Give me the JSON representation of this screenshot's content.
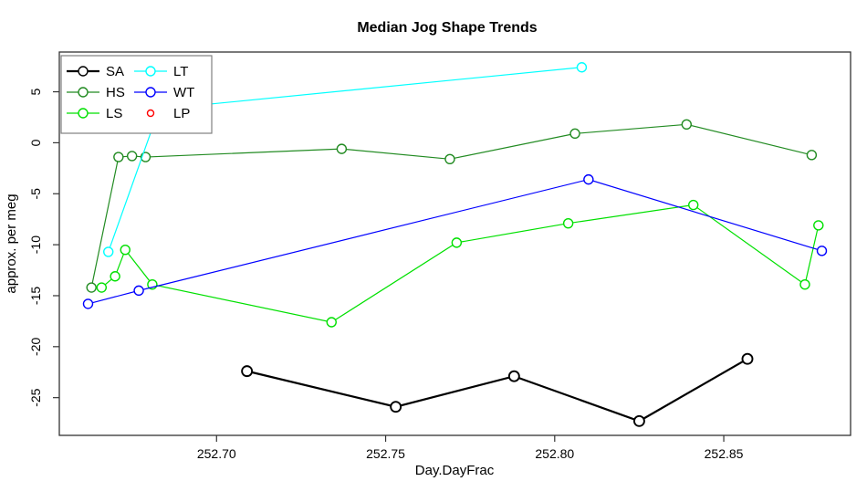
{
  "chart_data": {
    "type": "line",
    "title": "Median Jog Shape Trends",
    "xlabel": "Day.DayFrac",
    "ylabel": "approx. per meg",
    "xlim": [
      252.6535,
      252.8875
    ],
    "ylim": [
      -28.7,
      8.9
    ],
    "grid": false,
    "legend_position": "top-left",
    "x_ticks": {
      "values": [
        252.7,
        252.75,
        252.8,
        252.85
      ],
      "labels": [
        "252.70",
        "252.75",
        "252.80",
        "252.85"
      ]
    },
    "y_ticks": {
      "values": [
        5,
        0,
        -5,
        -10,
        -15,
        -20,
        -25
      ],
      "labels": [
        "5",
        "0",
        "-5",
        "-10",
        "-15",
        "-20",
        "-25"
      ]
    },
    "series": [
      {
        "name": "SA",
        "color": "#000000",
        "line": true,
        "line_width": 2.2,
        "marker": "open-circle",
        "points": [
          [
            252.709,
            -22.4
          ],
          [
            252.753,
            -25.9
          ],
          [
            252.788,
            -22.9
          ],
          [
            252.825,
            -27.3
          ],
          [
            252.857,
            -21.2
          ]
        ]
      },
      {
        "name": "HS",
        "color": "#228B22",
        "line": true,
        "line_width": 1.2,
        "marker": "open-circle",
        "points": [
          [
            252.663,
            -14.2
          ],
          [
            252.671,
            -1.4
          ],
          [
            252.675,
            -1.3
          ],
          [
            252.679,
            -1.4
          ],
          [
            252.737,
            -0.6
          ],
          [
            252.769,
            -1.6
          ],
          [
            252.806,
            0.9
          ],
          [
            252.839,
            1.8
          ],
          [
            252.876,
            -1.2
          ]
        ]
      },
      {
        "name": "LS",
        "color": "#00E000",
        "line": true,
        "line_width": 1.2,
        "marker": "open-circle",
        "points": [
          [
            252.666,
            -14.2
          ],
          [
            252.67,
            -13.1
          ],
          [
            252.673,
            -10.5
          ],
          [
            252.681,
            -13.9
          ],
          [
            252.734,
            -17.6
          ],
          [
            252.771,
            -9.8
          ],
          [
            252.804,
            -7.9
          ],
          [
            252.841,
            -6.1
          ],
          [
            252.874,
            -13.9
          ],
          [
            252.878,
            -8.1
          ]
        ]
      },
      {
        "name": "LT",
        "color": "#00FFFF",
        "line": true,
        "line_width": 1.2,
        "marker": "open-circle",
        "points": [
          [
            252.668,
            -10.7
          ],
          [
            252.683,
            3.3
          ],
          [
            252.808,
            7.4
          ]
        ]
      },
      {
        "name": "WT",
        "color": "#0000FF",
        "line": true,
        "line_width": 1.2,
        "marker": "open-circle",
        "points": [
          [
            252.662,
            -15.8
          ],
          [
            252.677,
            -14.5
          ],
          [
            252.81,
            -3.6
          ],
          [
            252.879,
            -10.6
          ]
        ]
      },
      {
        "name": "LP",
        "color": "#FF0000",
        "line": false,
        "line_width": 1.2,
        "marker": "open-circle",
        "points": []
      }
    ],
    "legend": {
      "columns": [
        [
          "SA",
          "HS",
          "LS"
        ],
        [
          "LT",
          "WT",
          "LP"
        ]
      ],
      "border_color": "#808080"
    },
    "colors": {
      "axis": "#333333",
      "text": "#000000",
      "background": "#FFFFFF"
    }
  }
}
